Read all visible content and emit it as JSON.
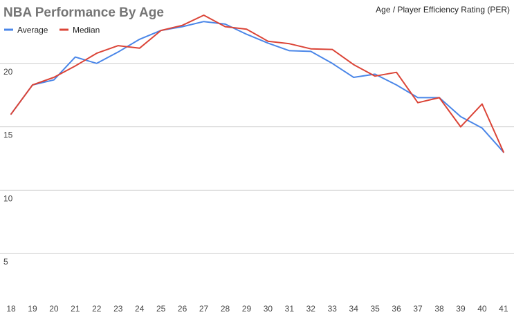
{
  "chart_data": {
    "type": "line",
    "title": "NBA Performance By Age",
    "subtitle": "Age / Player Efficiency Rating (PER)",
    "xlabel": "",
    "ylabel": "",
    "x": [
      18,
      19,
      20,
      21,
      22,
      23,
      24,
      25,
      26,
      27,
      28,
      29,
      30,
      31,
      32,
      33,
      34,
      35,
      36,
      37,
      38,
      39,
      40,
      41
    ],
    "ylim": [
      2.5,
      25
    ],
    "yticks": [
      5,
      10,
      15,
      20
    ],
    "grid": true,
    "legend_position": "top-left",
    "series": [
      {
        "name": "Average",
        "color": "#4a86e8",
        "values": [
          16.0,
          18.3,
          18.7,
          20.5,
          20.0,
          20.9,
          21.9,
          22.6,
          22.9,
          23.3,
          23.1,
          22.3,
          21.6,
          21.0,
          20.95,
          20.0,
          18.9,
          19.15,
          18.3,
          17.3,
          17.3,
          15.8,
          14.9,
          13.0
        ],
        "stroke_width": 2
      },
      {
        "name": "Median",
        "color": "#db4437",
        "values": [
          16.0,
          18.3,
          18.9,
          19.8,
          20.8,
          21.4,
          21.2,
          22.6,
          23.0,
          23.8,
          22.9,
          22.7,
          21.75,
          21.55,
          21.15,
          21.1,
          19.9,
          19.0,
          19.3,
          16.9,
          17.3,
          15.0,
          16.8,
          13.0
        ],
        "stroke_width": 2
      }
    ]
  }
}
